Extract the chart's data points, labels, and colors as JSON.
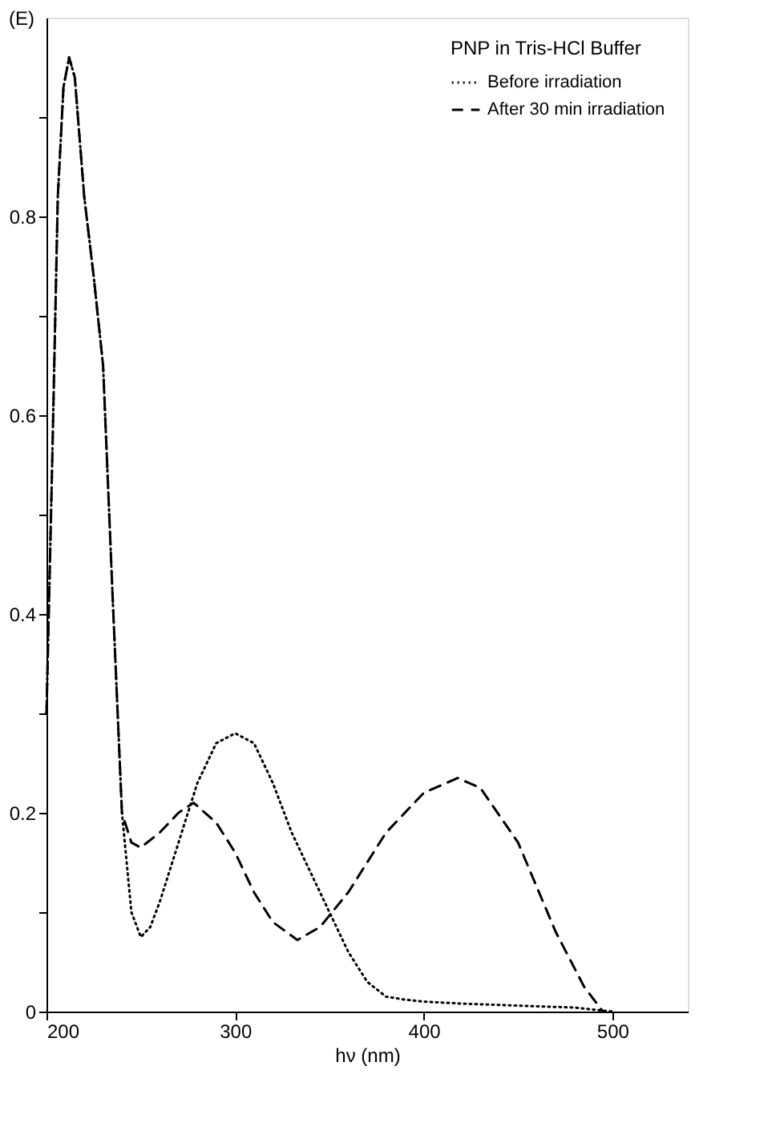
{
  "chart_data": {
    "type": "line",
    "xlabel": "hν (nm)",
    "ylabel": "(E)",
    "legend_title": "PNP in Tris-HCl Buffer",
    "legend": "top right",
    "grid": false,
    "marker": "none",
    "xlim": [
      200,
      540
    ],
    "xticks": [
      200,
      300,
      400,
      500
    ],
    "ylim": [
      0,
      1.0
    ],
    "yticks": [
      0,
      {
        "value": 0.1,
        "label": null
      },
      0.2,
      {
        "value": 0.3,
        "label": null
      },
      0.4,
      {
        "value": 0.5,
        "label": null
      },
      0.6,
      {
        "value": 0.7,
        "label": null
      },
      0.8,
      {
        "value": 0.9,
        "label": null
      }
    ],
    "series": [
      {
        "name": "Before irradiation",
        "color": "#000000",
        "line_style": "dotted",
        "x": [
          200,
          203,
          206,
          209,
          212,
          215,
          220,
          225,
          230,
          235,
          240,
          245,
          250,
          255,
          260,
          270,
          280,
          290,
          300,
          310,
          320,
          330,
          340,
          350,
          360,
          370,
          380,
          390,
          400,
          420,
          450,
          480,
          500
        ],
        "values": [
          0.3,
          0.55,
          0.82,
          0.93,
          0.96,
          0.94,
          0.82,
          0.74,
          0.65,
          0.42,
          0.2,
          0.1,
          0.075,
          0.085,
          0.11,
          0.17,
          0.23,
          0.27,
          0.28,
          0.27,
          0.23,
          0.18,
          0.14,
          0.1,
          0.06,
          0.03,
          0.015,
          0.012,
          0.01,
          0.008,
          0.006,
          0.004,
          0.0
        ]
      },
      {
        "name": "After 30 min irradiation",
        "color": "#000000",
        "line_style": "dashed",
        "x": [
          200,
          203,
          206,
          209,
          212,
          215,
          220,
          225,
          230,
          235,
          240,
          245,
          250,
          260,
          270,
          278,
          290,
          300,
          310,
          320,
          333,
          345,
          360,
          380,
          400,
          418,
          430,
          450,
          470,
          485,
          495
        ],
        "values": [
          0.3,
          0.55,
          0.82,
          0.93,
          0.96,
          0.94,
          0.82,
          0.74,
          0.65,
          0.42,
          0.2,
          0.17,
          0.165,
          0.18,
          0.2,
          0.21,
          0.19,
          0.16,
          0.12,
          0.09,
          0.072,
          0.085,
          0.12,
          0.18,
          0.22,
          0.235,
          0.225,
          0.17,
          0.08,
          0.025,
          0.0
        ]
      }
    ]
  }
}
